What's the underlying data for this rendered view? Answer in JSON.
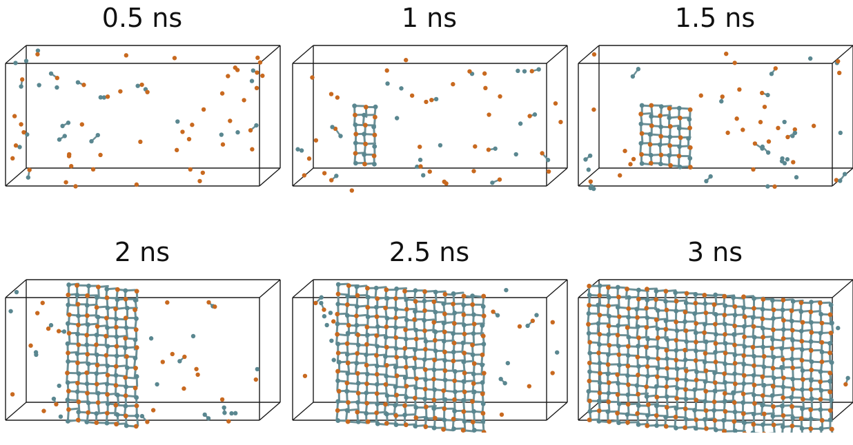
{
  "figure": {
    "panels": [
      {
        "title": "0.5 ns",
        "crystal_fraction": 0.0
      },
      {
        "title": "1 ns",
        "crystal_fraction": 0.05
      },
      {
        "title": "1.5 ns",
        "crystal_fraction": 0.15
      },
      {
        "title": "2 ns",
        "crystal_fraction": 0.35
      },
      {
        "title": "2.5 ns",
        "crystal_fraction": 0.6
      },
      {
        "title": "3 ns",
        "crystal_fraction": 0.9
      }
    ],
    "colors": {
      "atom_a": "#c8691f",
      "atom_b": "#5a8790",
      "bond": "#6b8f96",
      "box": "#1a1a1a"
    }
  }
}
